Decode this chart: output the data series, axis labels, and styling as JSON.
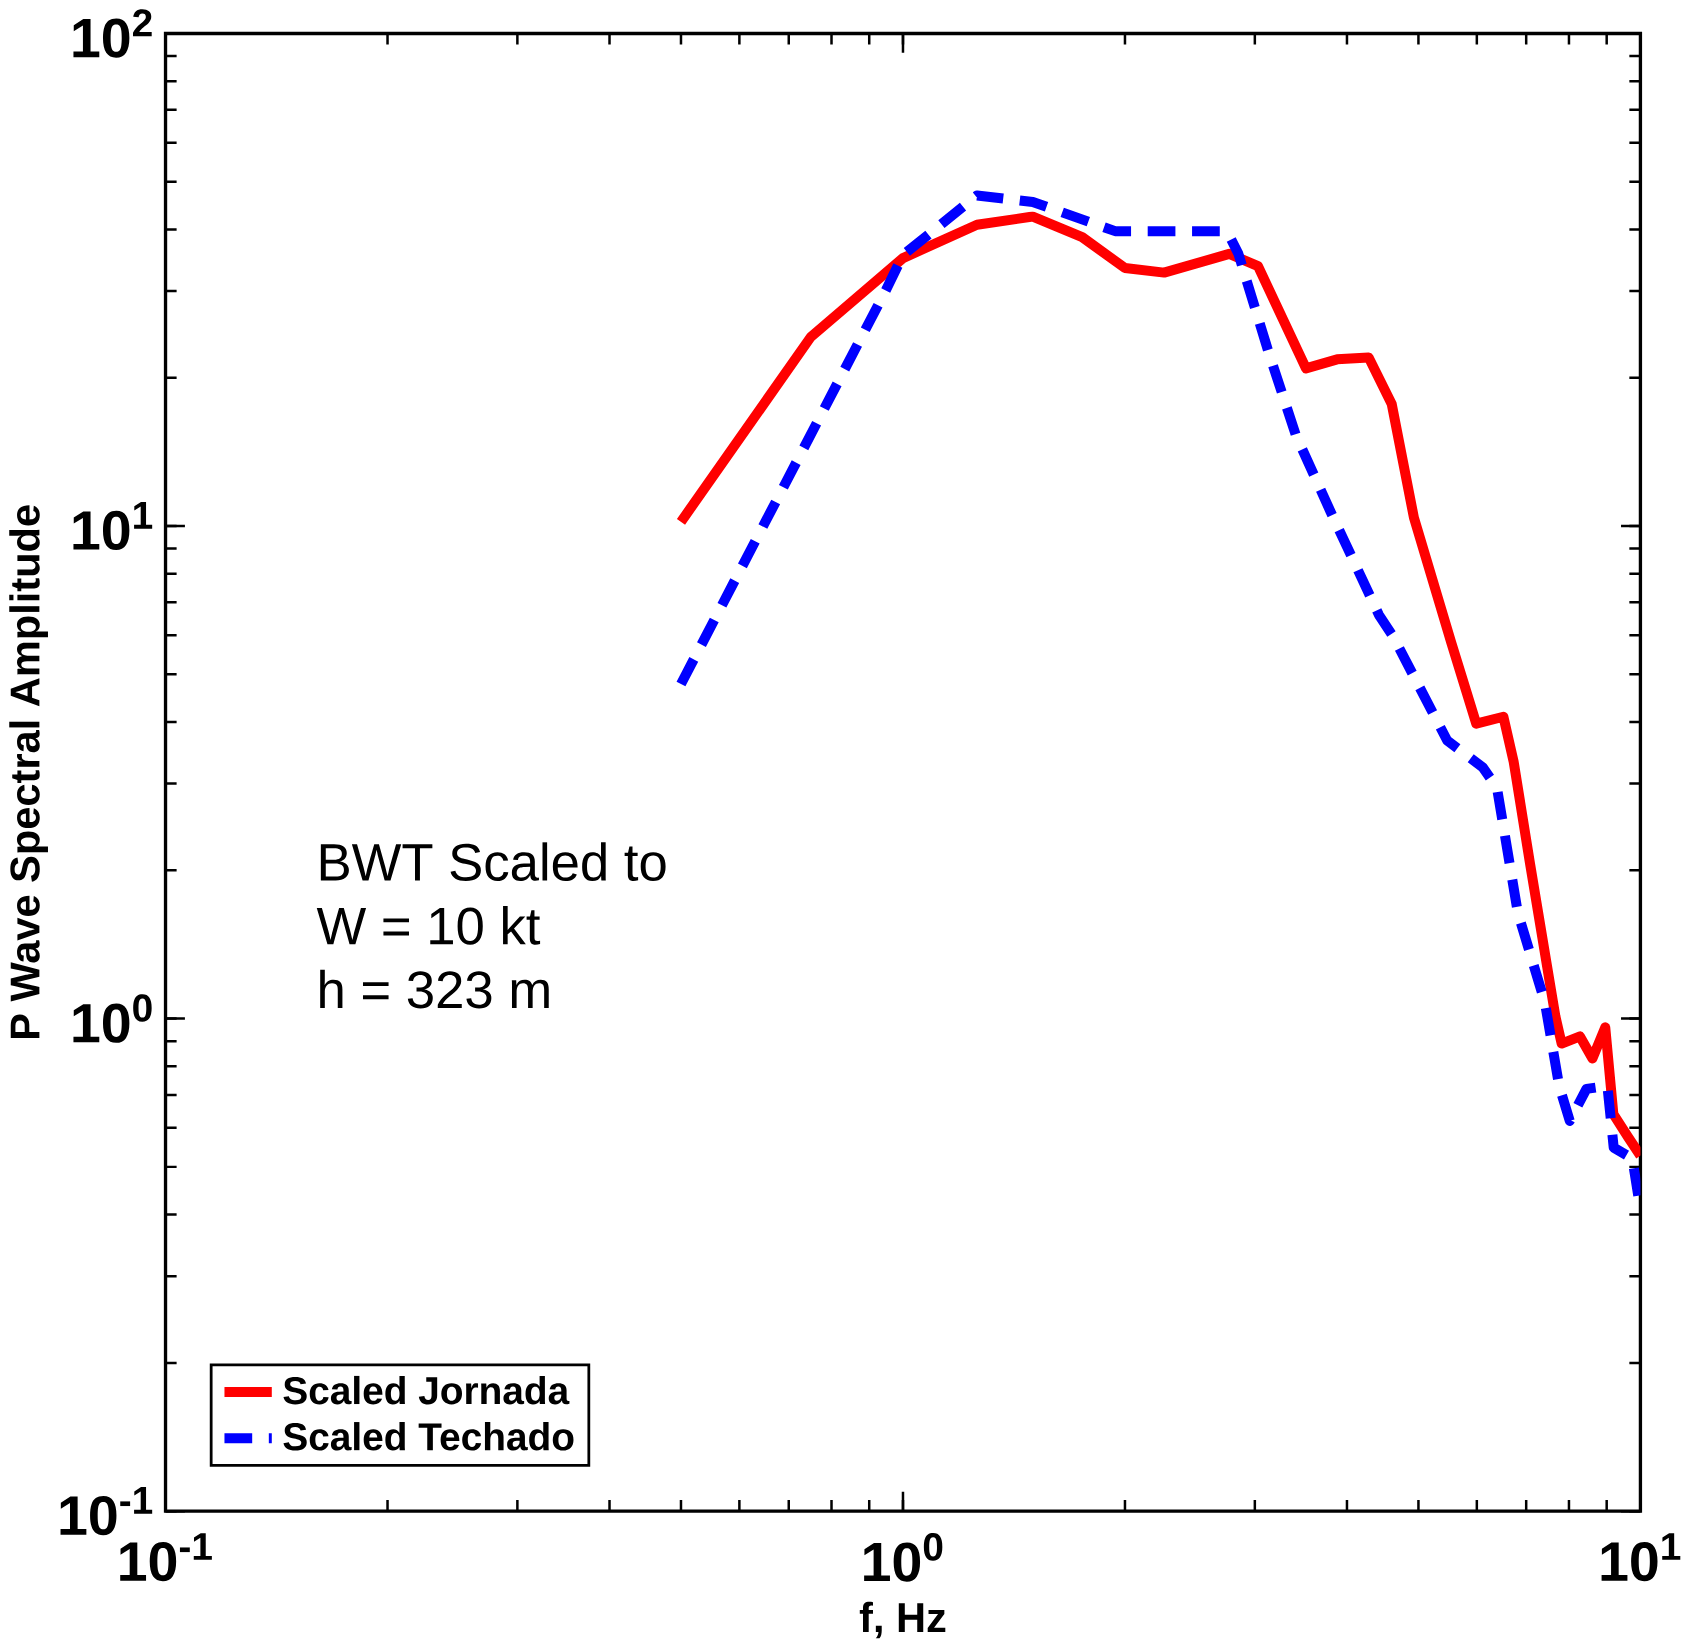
{
  "chart_data": {
    "type": "line",
    "xlabel": "f, Hz",
    "ylabel": "P Wave Spectral Amplitude",
    "log": "xy",
    "grid": false,
    "legend": "bottom left",
    "marker": "none",
    "xlim": [
      0.1,
      10
    ],
    "ylim": [
      0.1,
      100
    ],
    "xticks": [
      {
        "value": 0.1,
        "label": "10$^{-1}$"
      },
      {
        "value": 1,
        "label": "10$^{0}$"
      },
      {
        "value": 10,
        "label": "10$^{1}$"
      }
    ],
    "yticks": [
      {
        "value": 0.1,
        "label": "10$^{-1}$"
      },
      {
        "value": 1,
        "label": "10$^{0}$"
      },
      {
        "value": 10,
        "label": "10$^{1}$"
      },
      {
        "value": 100,
        "label": "10$^{2}$"
      }
    ],
    "annotations": [
      "BWT Scaled to",
      "W = 10 kt",
      "h = 323 m"
    ],
    "series": [
      {
        "name": "Scaled Jornada",
        "color": "#ff0000",
        "line_style": "solid",
        "x": [
          0.5,
          0.75,
          1.0,
          1.26,
          1.5,
          1.75,
          2.0,
          2.26,
          2.77,
          3.03,
          3.52,
          3.88,
          4.28,
          4.6,
          4.93,
          5.54,
          5.8,
          5.99,
          6.52,
          6.73,
          7.09,
          7.67,
          7.82,
          8.28,
          8.61,
          8.96,
          9.19,
          9.62,
          10
        ],
        "values": [
          10.2,
          24.2,
          35,
          40.9,
          42.5,
          38.6,
          33.4,
          32.7,
          35.7,
          33.7,
          20.9,
          21.8,
          22,
          17.7,
          10.4,
          5.8,
          4.64,
          3.97,
          4.1,
          3.33,
          2.05,
          1.01,
          0.89,
          0.92,
          0.83,
          0.96,
          0.64,
          0.575,
          0.527
        ]
      },
      {
        "name": "Scaled Techado",
        "color": "#0000ff",
        "line_style": "dashed",
        "x": [
          0.5,
          0.95,
          1.0,
          1.26,
          1.5,
          1.94,
          2.45,
          2.75,
          2.85,
          3.13,
          3.41,
          3.8,
          4.42,
          4.62,
          5.47,
          6.11,
          6.39,
          6.82,
          7.42,
          7.76,
          8.02,
          8.45,
          9.02,
          9.2,
          9.75,
          10
        ],
        "values": [
          4.78,
          30.3,
          35.5,
          46.9,
          45.5,
          39.7,
          39.7,
          39.7,
          35.7,
          22.6,
          15.3,
          10.7,
          6.6,
          5.97,
          3.67,
          3.24,
          2.94,
          1.64,
          1.08,
          0.73,
          0.62,
          0.72,
          0.73,
          0.547,
          0.52,
          0.41
        ]
      }
    ]
  }
}
